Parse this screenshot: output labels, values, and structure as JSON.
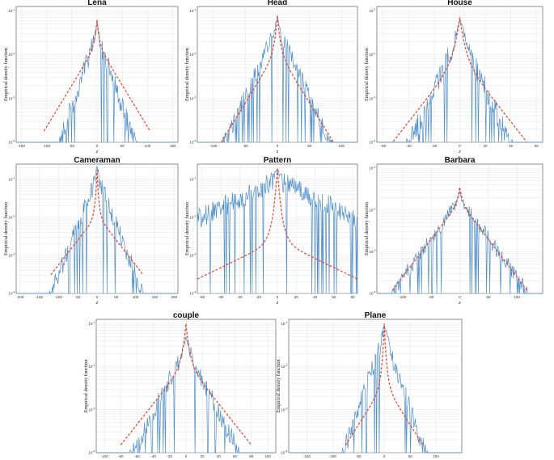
{
  "chart_data": [
    {
      "type": "line",
      "title": "Lena",
      "xlabel": "z",
      "ylabel": "Empirical density function",
      "xticks": [
        -150,
        -100,
        -50,
        0,
        50,
        100,
        150
      ],
      "xlim": [
        -160,
        160
      ],
      "yticks": [
        "10^-1",
        "10^-2",
        "10^-3",
        "10^-4"
      ],
      "ylim_log10": [
        -4,
        -0.9
      ],
      "series": [
        {
          "kind": "empirical",
          "peak_log10": -1.25,
          "decay": 0.034,
          "floor": -4,
          "noise": 0.5,
          "half_width": 120
        },
        {
          "kind": "fit",
          "peak_log10": -1.2,
          "a": 0.55,
          "b": 0.019,
          "half_width": 105
        }
      ]
    },
    {
      "type": "line",
      "title": "Head",
      "xlabel": "z",
      "ylabel": "Empirical density function",
      "xticks": [
        -100,
        -50,
        0,
        50,
        100
      ],
      "xlim": [
        -125,
        125
      ],
      "yticks": [
        "10^-1",
        "10^-2",
        "10^-3",
        "10^-4"
      ],
      "ylim_log10": [
        -4,
        -0.9
      ],
      "series": [
        {
          "kind": "empirical",
          "peak_log10": -1.15,
          "decay": 0.032,
          "floor": -4,
          "noise": 0.4,
          "half_width": 90
        },
        {
          "kind": "fit",
          "peak_log10": -1.1,
          "a": 0.8,
          "b": 0.024,
          "half_width": 92
        }
      ]
    },
    {
      "type": "line",
      "title": "House",
      "xlabel": "z",
      "ylabel": "Empirical density function",
      "xticks": [
        -60,
        -40,
        -20,
        0,
        20,
        40,
        60
      ],
      "xlim": [
        -65,
        65
      ],
      "yticks": [
        "10^-1",
        "10^-2",
        "10^-3",
        "10^-4"
      ],
      "ylim_log10": [
        -4,
        -0.9
      ],
      "series": [
        {
          "kind": "empirical",
          "peak_log10": -1.2,
          "decay": 0.065,
          "floor": -4,
          "noise": 0.55,
          "half_width": 50
        },
        {
          "kind": "fit",
          "peak_log10": -1.15,
          "a": 0.9,
          "b": 0.037,
          "half_width": 55
        }
      ]
    },
    {
      "type": "line",
      "title": "Cameraman",
      "xlabel": "z",
      "ylabel": "Empirical density function",
      "xticks": [
        -200,
        -150,
        -100,
        -50,
        0,
        50,
        100,
        150,
        200
      ],
      "xlim": [
        -210,
        210
      ],
      "yticks": [
        "10^-1",
        "10^-2",
        "10^-3",
        "10^-4"
      ],
      "ylim_log10": [
        -4,
        -0.6
      ],
      "series": [
        {
          "kind": "empirical",
          "peak_log10": -0.65,
          "decay": 0.026,
          "floor": -4,
          "noise": 0.5,
          "half_width": 150
        },
        {
          "kind": "fit",
          "peak_log10": -0.75,
          "a": 1.2,
          "b": 0.013,
          "half_width": 120
        }
      ]
    },
    {
      "type": "line",
      "title": "Pattern",
      "xlabel": "z",
      "ylabel": "Empirical density function",
      "xticks": [
        -80,
        -60,
        -40,
        -20,
        0,
        20,
        40,
        60,
        80
      ],
      "xlim": [
        -85,
        85
      ],
      "yticks": [
        "10^-1",
        "10^-2",
        "10^-3",
        "10^-4"
      ],
      "ylim_log10": [
        -4,
        -0.6
      ],
      "series": [
        {
          "kind": "empirical",
          "peak_log10": -0.75,
          "decay": 0.012,
          "floor": -4,
          "noise": 0.55,
          "half_width": 85
        },
        {
          "kind": "fit",
          "peak_log10": -0.7,
          "a": 1.9,
          "b": 0.012,
          "half_width": 85
        }
      ]
    },
    {
      "type": "line",
      "title": "Barbara",
      "xlabel": "z",
      "ylabel": "Empirical density function",
      "xticks": [
        -100,
        -50,
        0,
        50,
        100
      ],
      "xlim": [
        -145,
        145
      ],
      "yticks": [
        "10^-1",
        "10^-2",
        "10^-3",
        "10^-4"
      ],
      "ylim_log10": [
        -4,
        -0.9
      ],
      "series": [
        {
          "kind": "empirical",
          "peak_log10": -1.55,
          "decay": 0.019,
          "floor": -4,
          "noise": 0.35,
          "half_width": 120
        },
        {
          "kind": "fit",
          "peak_log10": -1.45,
          "a": 0.35,
          "b": 0.018,
          "half_width": 118
        }
      ]
    },
    {
      "type": "line",
      "title": "couple",
      "xlabel": "z",
      "ylabel": "Empirical density function",
      "xticks": [
        -100,
        -80,
        -60,
        -40,
        -20,
        0,
        20,
        40,
        60,
        80,
        100
      ],
      "xlim": [
        -110,
        110
      ],
      "yticks": [
        "10^-1",
        "10^-2",
        "10^-3",
        "10^-4"
      ],
      "ylim_log10": [
        -4,
        -0.9
      ],
      "series": [
        {
          "kind": "empirical",
          "peak_log10": -1.3,
          "decay": 0.038,
          "floor": -4,
          "noise": 0.45,
          "half_width": 75
        },
        {
          "kind": "fit",
          "peak_log10": -1.0,
          "a": 0.9,
          "b": 0.024,
          "half_width": 80
        }
      ]
    },
    {
      "type": "line",
      "title": "Plane",
      "xlabel": "z",
      "ylabel": "Empirical density function",
      "xticks": [
        -150,
        -100,
        -50,
        0,
        50,
        100
      ],
      "xlim": [
        -185,
        150
      ],
      "yticks": [
        "10^-1",
        "10^-2",
        "10^-3",
        "10^-4"
      ],
      "ylim_log10": [
        -4,
        -0.9
      ],
      "series": [
        {
          "kind": "empirical",
          "peak_log10": -1.0,
          "decay": 0.035,
          "floor": -4,
          "noise": 0.45,
          "half_width": 95
        },
        {
          "kind": "fit",
          "peak_log10": -1.0,
          "a": 1.4,
          "b": 0.019,
          "half_width": 75
        }
      ]
    }
  ]
}
